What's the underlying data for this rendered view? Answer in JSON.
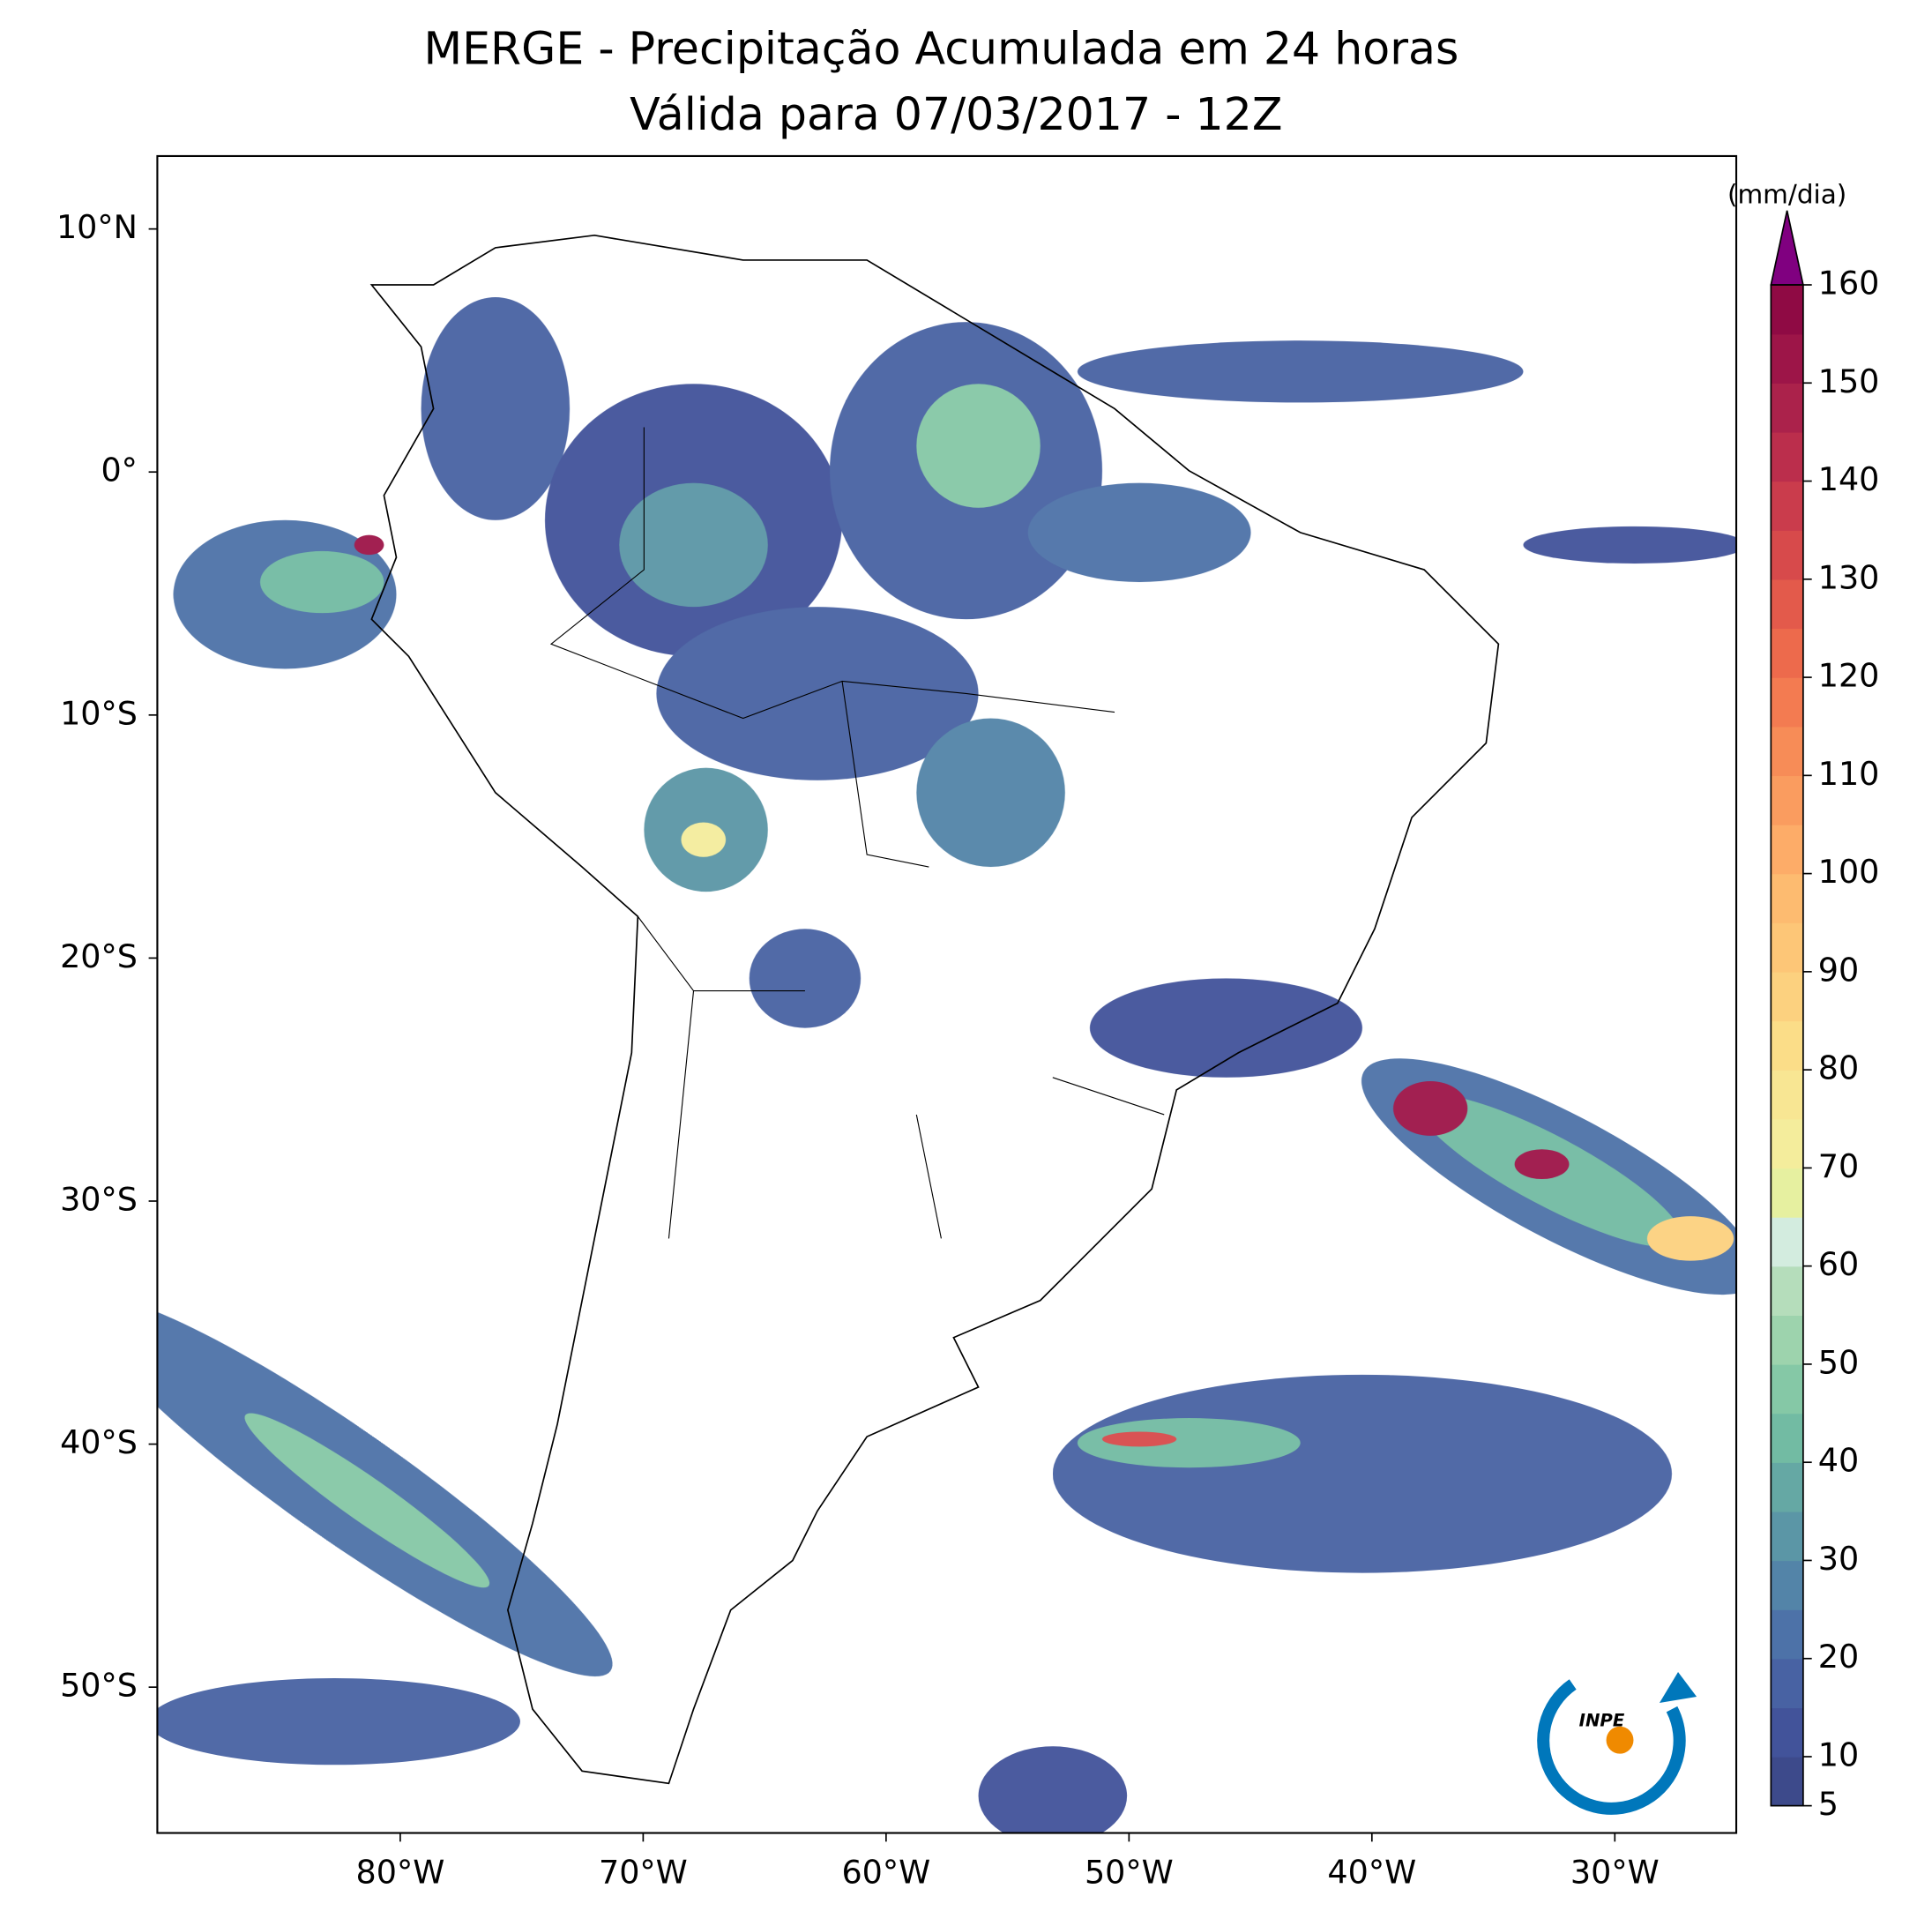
{
  "chart_data": {
    "type": "map",
    "title": "MERGE - Precipitação Acumulada em 24 horas",
    "subtitle": "Válida para 07/03/2017 - 12Z",
    "xlim": [
      -90,
      -25
    ],
    "ylim": [
      -56,
      13
    ],
    "xticks": [
      {
        "value": -80,
        "label": "80°W"
      },
      {
        "value": -70,
        "label": "70°W"
      },
      {
        "value": -60,
        "label": "60°W"
      },
      {
        "value": -50,
        "label": "50°W"
      },
      {
        "value": -40,
        "label": "40°W"
      },
      {
        "value": -30,
        "label": "30°W"
      }
    ],
    "yticks": [
      {
        "value": 10,
        "label": "10°N"
      },
      {
        "value": 0,
        "label": "0°"
      },
      {
        "value": -10,
        "label": "10°S"
      },
      {
        "value": -20,
        "label": "20°S"
      },
      {
        "value": -30,
        "label": "30°S"
      },
      {
        "value": -40,
        "label": "40°S"
      },
      {
        "value": -50,
        "label": "50°S"
      }
    ],
    "colorbar": {
      "label": "(mm/dia)",
      "lim": [
        5,
        160
      ],
      "ticks": [
        5,
        10,
        20,
        30,
        40,
        50,
        60,
        70,
        80,
        90,
        100,
        110,
        120,
        130,
        140,
        150,
        160
      ],
      "colors": [
        "#3d4a8b",
        "#42539a",
        "#4862a3",
        "#4d72a8",
        "#5384a8",
        "#5b96a6",
        "#65a8a4",
        "#72bba3",
        "#85c8a6",
        "#9dd3ad",
        "#b5ddbb",
        "#d3ecdf",
        "#e6f0a0",
        "#f4ed9c",
        "#f8e693",
        "#fbdd88",
        "#fcd17f",
        "#fdc677",
        "#fdbb70",
        "#fdac68",
        "#fa9c5f",
        "#f78c57",
        "#f37b51",
        "#ed6a4c",
        "#e35a4b",
        "#d74a4b",
        "#ca3c4c",
        "#bb2e4c",
        "#ab224b",
        "#9d1548",
        "#8f0a44"
      ],
      "extend_color": "#800080"
    }
  },
  "logo": "INPE"
}
